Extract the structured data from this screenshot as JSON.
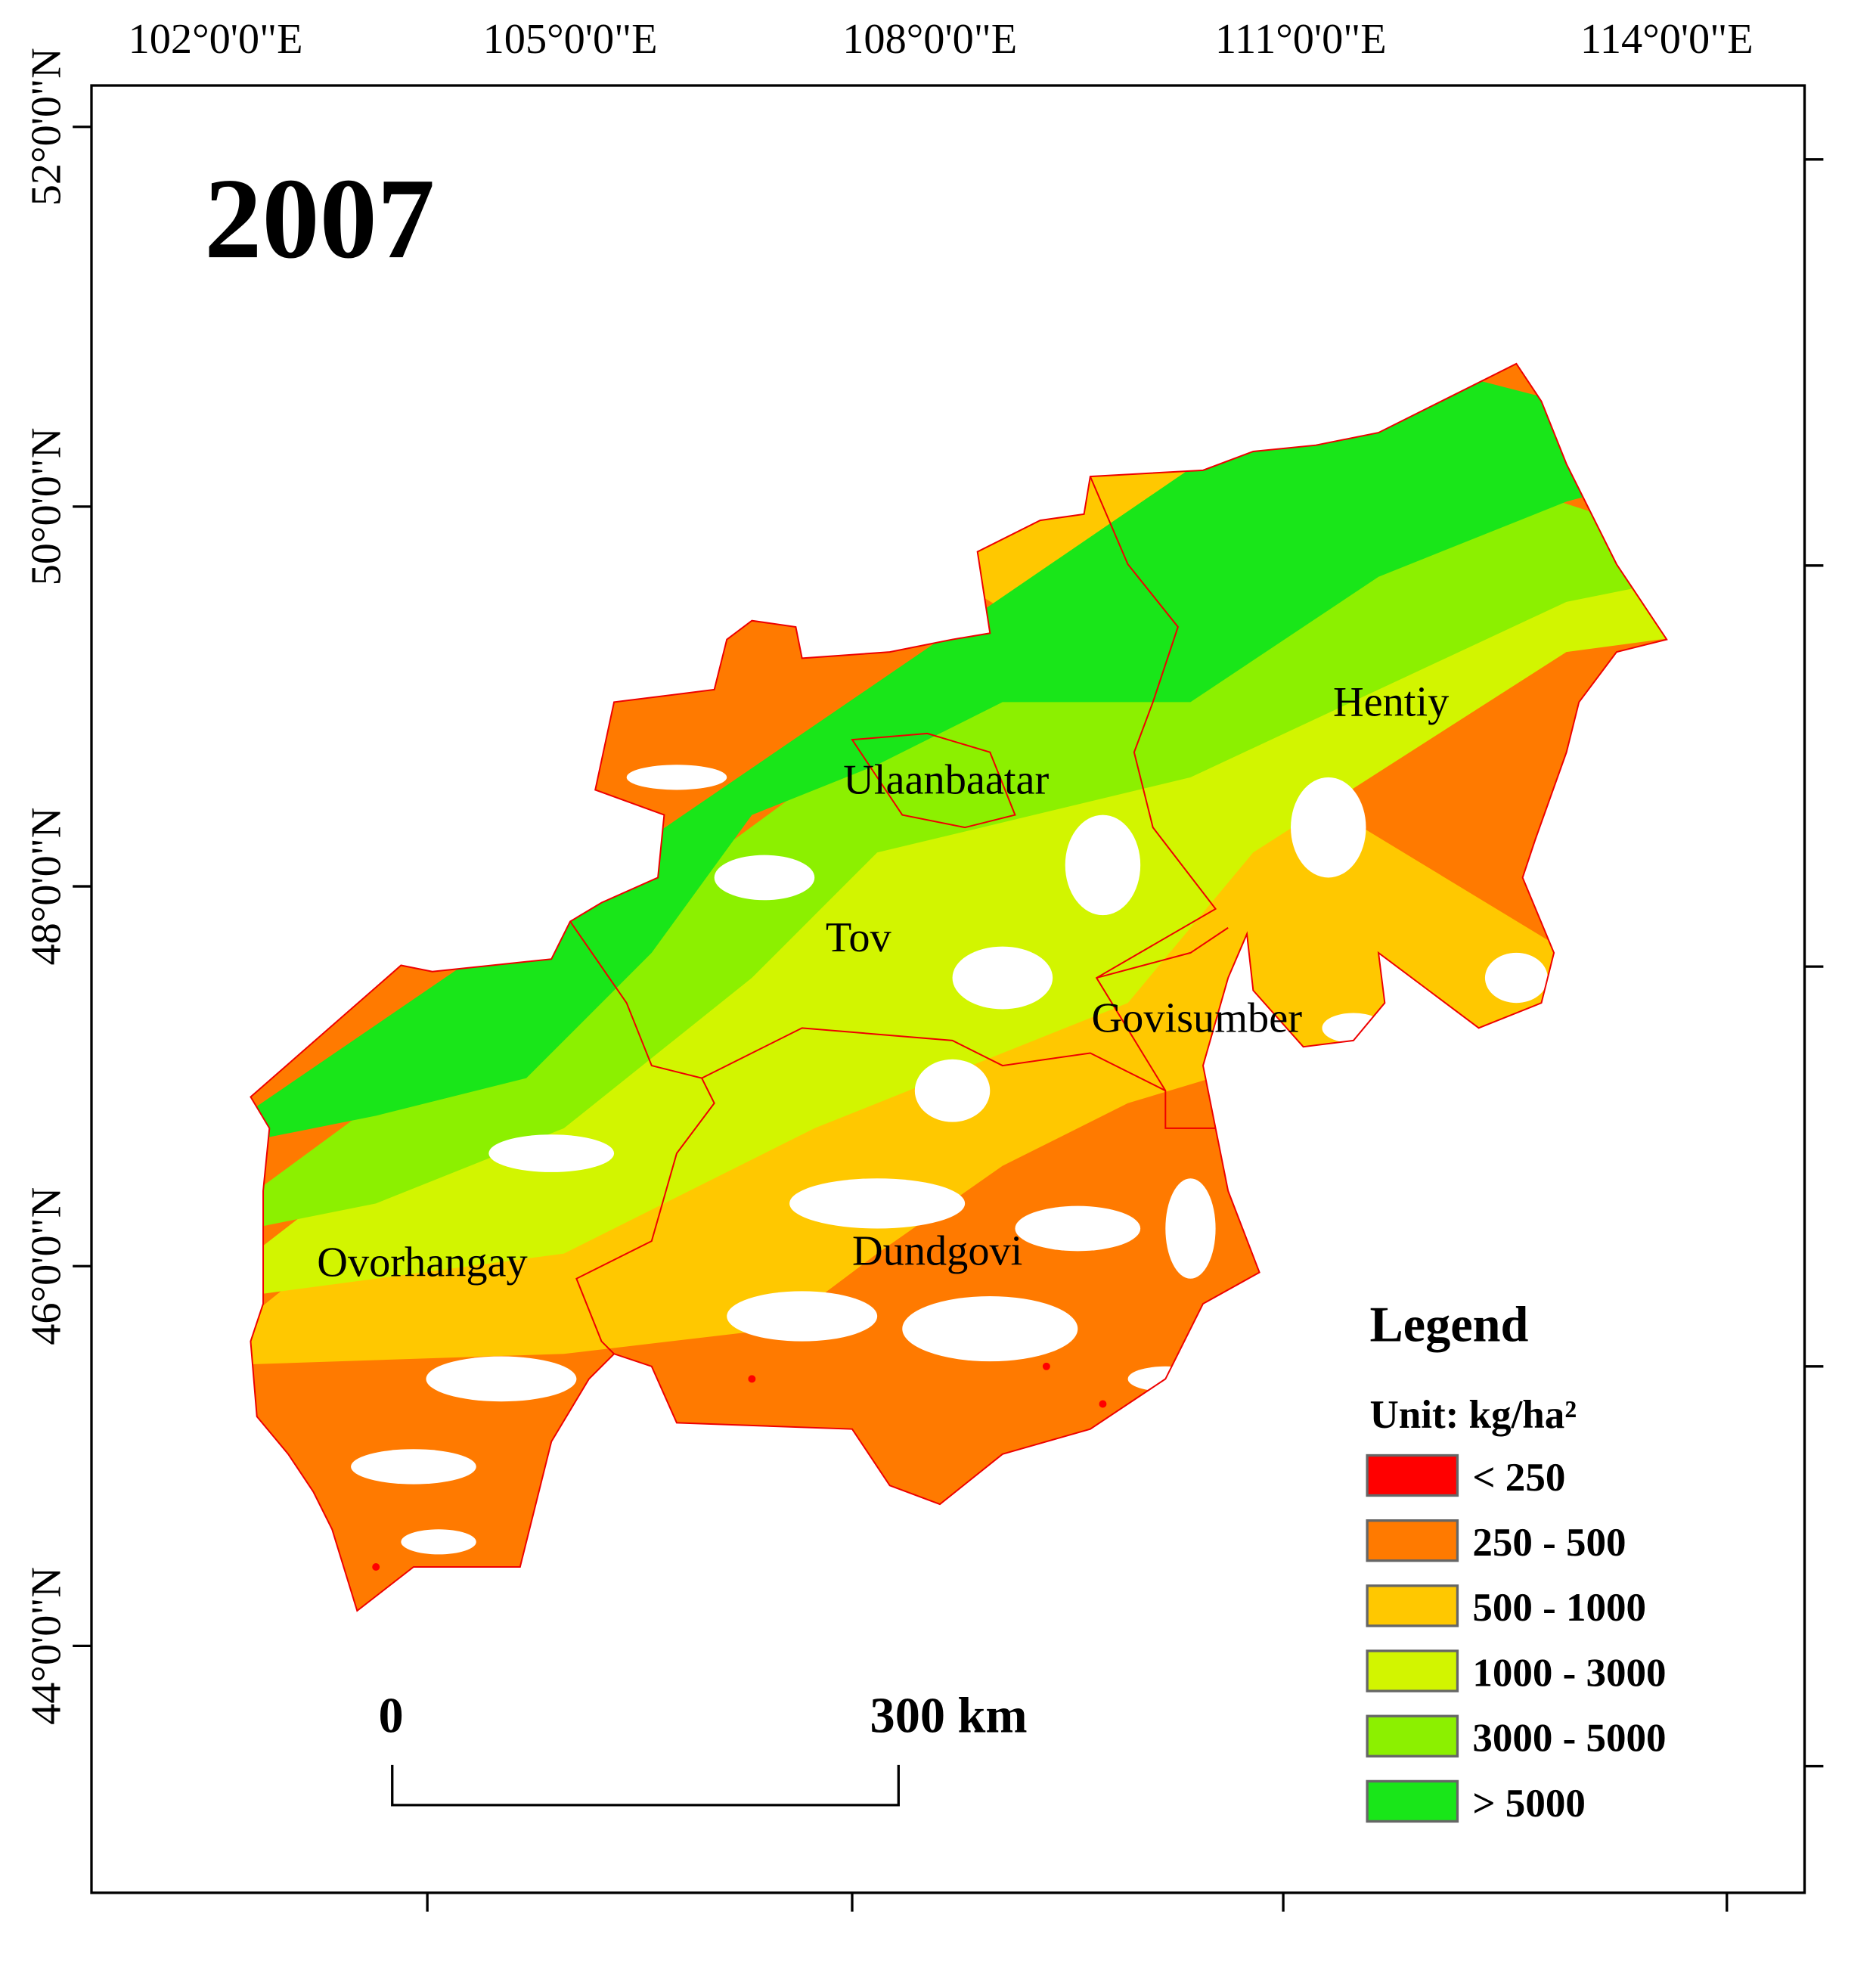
{
  "title": "2007",
  "longitude_labels": [
    "102°0'0\"E",
    "105°0'0\"E",
    "108°0'0\"E",
    "111°0'0\"E",
    "114°0'0\"E"
  ],
  "latitude_labels": [
    "52°0'0\"N",
    "50°0'0\"N",
    "48°0'0\"N",
    "46°0'0\"N",
    "44°0'0\"N"
  ],
  "regions": [
    "Hentiy",
    "Ulaanbaatar",
    "Tov",
    "Govisumber",
    "Dundgovi",
    "Ovorhangay"
  ],
  "legend": {
    "title": "Legend",
    "unit": "Unit: kg/ha²",
    "items": [
      {
        "label": "< 250",
        "color": "#ff0000"
      },
      {
        "label": "250 - 500",
        "color": "#ff7a00"
      },
      {
        "label": "500 - 1000",
        "color": "#ffc800"
      },
      {
        "label": "1000 - 3000",
        "color": "#d2f500"
      },
      {
        "label": "3000 - 5000",
        "color": "#8cf000"
      },
      {
        "label": "> 5000",
        "color": "#19e619"
      }
    ]
  },
  "scale_bar": {
    "start": "0",
    "end": "300 km"
  }
}
